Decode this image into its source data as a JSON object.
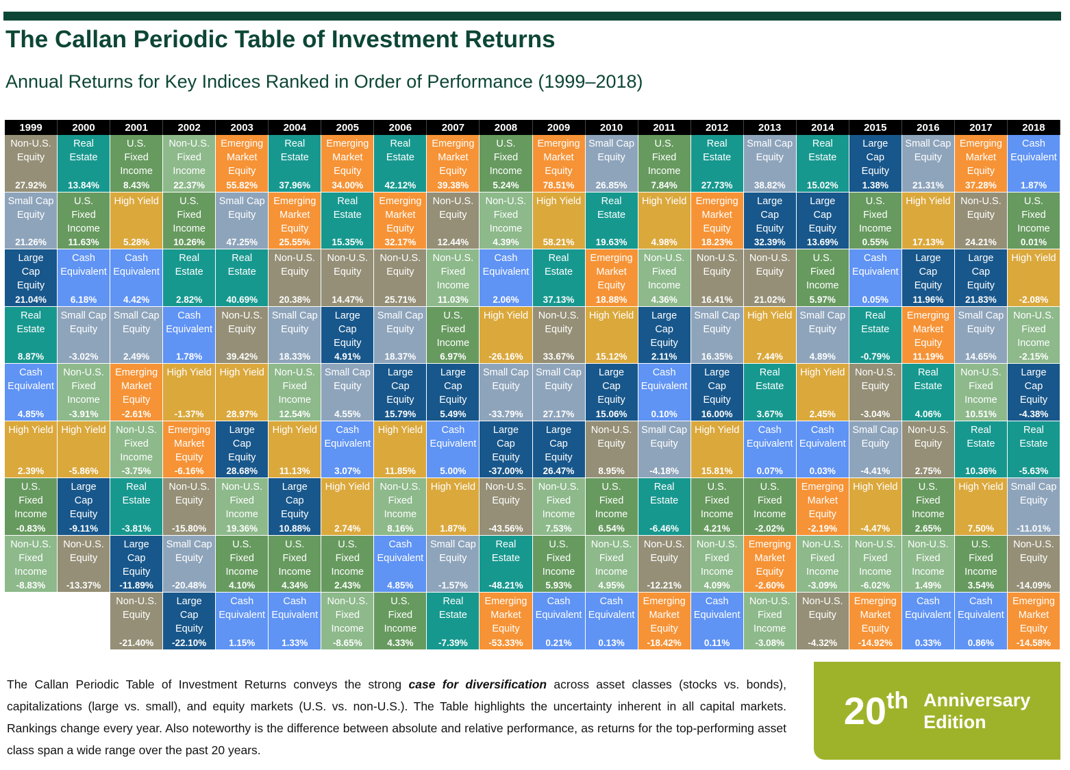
{
  "header": {
    "title": "The Callan Periodic Table of Investment Returns",
    "subtitle": "Annual Returns for Key Indices Ranked in Order of Performance (1999–2018)"
  },
  "colors": {
    "Non-U.S. Equity": "#948f76",
    "Real Estate": "#17988f",
    "U.S. Fixed Income": "#679a5f",
    "Non-U.S. Fixed Income": "#8db98b",
    "Emerging Market Equity": "#f69336",
    "Small Cap Equity": "#8ea4bb",
    "High Yield": "#dba83c",
    "Large Cap Equity": "#18578b",
    "Cash Equivalent": "#5f93f4"
  },
  "chart_data": {
    "type": "table",
    "years": [
      "1999",
      "2000",
      "2001",
      "2002",
      "2003",
      "2004",
      "2005",
      "2006",
      "2007",
      "2008",
      "2009",
      "2010",
      "2011",
      "2012",
      "2013",
      "2014",
      "2015",
      "2016",
      "2017",
      "2018"
    ],
    "columns": [
      [
        [
          "Non-U.S. Equity",
          "27.92%"
        ],
        [
          "Small Cap Equity",
          "21.26%"
        ],
        [
          "Large Cap Equity",
          "21.04%"
        ],
        [
          "Real Estate",
          "8.87%"
        ],
        [
          "Cash Equivalent",
          "4.85%"
        ],
        [
          "High Yield",
          "2.39%"
        ],
        [
          "U.S. Fixed Income",
          "-0.83%"
        ],
        [
          "Non-U.S. Fixed Income",
          "-8.83%"
        ]
      ],
      [
        [
          "Real Estate",
          "13.84%"
        ],
        [
          "U.S. Fixed Income",
          "11.63%"
        ],
        [
          "Cash Equivalent",
          "6.18%"
        ],
        [
          "Small Cap Equity",
          "-3.02%"
        ],
        [
          "Non-U.S. Fixed Income",
          "-3.91%"
        ],
        [
          "High Yield",
          "-5.86%"
        ],
        [
          "Large Cap Equity",
          "-9.11%"
        ],
        [
          "Non-U.S. Equity",
          "-13.37%"
        ]
      ],
      [
        [
          "U.S. Fixed Income",
          "8.43%"
        ],
        [
          "High Yield",
          "5.28%"
        ],
        [
          "Cash Equivalent",
          "4.42%"
        ],
        [
          "Small Cap Equity",
          "2.49%"
        ],
        [
          "Emerging Market Equity",
          "-2.61%"
        ],
        [
          "Non-U.S. Fixed Income",
          "-3.75%"
        ],
        [
          "Real Estate",
          "-3.81%"
        ],
        [
          "Large Cap Equity",
          "-11.89%"
        ],
        [
          "Non-U.S. Equity",
          "-21.40%"
        ]
      ],
      [
        [
          "Non-U.S. Fixed Income",
          "22.37%"
        ],
        [
          "U.S. Fixed Income",
          "10.26%"
        ],
        [
          "Real Estate",
          "2.82%"
        ],
        [
          "Cash Equivalent",
          "1.78%"
        ],
        [
          "High Yield",
          "-1.37%"
        ],
        [
          "Emerging Market Equity",
          "-6.16%"
        ],
        [
          "Non-U.S. Equity",
          "-15.80%"
        ],
        [
          "Small Cap Equity",
          "-20.48%"
        ],
        [
          "Large Cap Equity",
          "-22.10%"
        ]
      ],
      [
        [
          "Emerging Market Equity",
          "55.82%"
        ],
        [
          "Small Cap Equity",
          "47.25%"
        ],
        [
          "Real Estate",
          "40.69%"
        ],
        [
          "Non-U.S. Equity",
          "39.42%"
        ],
        [
          "High Yield",
          "28.97%"
        ],
        [
          "Large Cap Equity",
          "28.68%"
        ],
        [
          "Non-U.S. Fixed Income",
          "19.36%"
        ],
        [
          "U.S. Fixed Income",
          "4.10%"
        ],
        [
          "Cash Equivalent",
          "1.15%"
        ]
      ],
      [
        [
          "Real Estate",
          "37.96%"
        ],
        [
          "Emerging Market Equity",
          "25.55%"
        ],
        [
          "Non-U.S. Equity",
          "20.38%"
        ],
        [
          "Small Cap Equity",
          "18.33%"
        ],
        [
          "Non-U.S. Fixed Income",
          "12.54%"
        ],
        [
          "High Yield",
          "11.13%"
        ],
        [
          "Large Cap Equity",
          "10.88%"
        ],
        [
          "U.S. Fixed Income",
          "4.34%"
        ],
        [
          "Cash Equivalent",
          "1.33%"
        ]
      ],
      [
        [
          "Emerging Market Equity",
          "34.00%"
        ],
        [
          "Real Estate",
          "15.35%"
        ],
        [
          "Non-U.S. Equity",
          "14.47%"
        ],
        [
          "Large Cap Equity",
          "4.91%"
        ],
        [
          "Small Cap Equity",
          "4.55%"
        ],
        [
          "Cash Equivalent",
          "3.07%"
        ],
        [
          "High Yield",
          "2.74%"
        ],
        [
          "U.S. Fixed Income",
          "2.43%"
        ],
        [
          "Non-U.S. Fixed Income",
          "-8.65%"
        ]
      ],
      [
        [
          "Real Estate",
          "42.12%"
        ],
        [
          "Emerging Market Equity",
          "32.17%"
        ],
        [
          "Non-U.S. Equity",
          "25.71%"
        ],
        [
          "Small Cap Equity",
          "18.37%"
        ],
        [
          "Large Cap Equity",
          "15.79%"
        ],
        [
          "High Yield",
          "11.85%"
        ],
        [
          "Non-U.S. Fixed Income",
          "8.16%"
        ],
        [
          "Cash Equivalent",
          "4.85%"
        ],
        [
          "U.S. Fixed Income",
          "4.33%"
        ]
      ],
      [
        [
          "Emerging Market Equity",
          "39.38%"
        ],
        [
          "Non-U.S. Equity",
          "12.44%"
        ],
        [
          "Non-U.S. Fixed Income",
          "11.03%"
        ],
        [
          "U.S. Fixed Income",
          "6.97%"
        ],
        [
          "Large Cap Equity",
          "5.49%"
        ],
        [
          "Cash Equivalent",
          "5.00%"
        ],
        [
          "High Yield",
          "1.87%"
        ],
        [
          "Small Cap Equity",
          "-1.57%"
        ],
        [
          "Real Estate",
          "-7.39%"
        ]
      ],
      [
        [
          "U.S. Fixed Income",
          "5.24%"
        ],
        [
          "Non-U.S. Fixed Income",
          "4.39%"
        ],
        [
          "Cash Equivalent",
          "2.06%"
        ],
        [
          "High Yield",
          "-26.16%"
        ],
        [
          "Small Cap Equity",
          "-33.79%"
        ],
        [
          "Large Cap Equity",
          "-37.00%"
        ],
        [
          "Non-U.S. Equity",
          "-43.56%"
        ],
        [
          "Real Estate",
          "-48.21%"
        ],
        [
          "Emerging Market Equity",
          "-53.33%"
        ]
      ],
      [
        [
          "Emerging Market Equity",
          "78.51%"
        ],
        [
          "High Yield",
          "58.21%"
        ],
        [
          "Real Estate",
          "37.13%"
        ],
        [
          "Non-U.S. Equity",
          "33.67%"
        ],
        [
          "Small Cap Equity",
          "27.17%"
        ],
        [
          "Large Cap Equity",
          "26.47%"
        ],
        [
          "Non-U.S. Fixed Income",
          "7.53%"
        ],
        [
          "U.S. Fixed Income",
          "5.93%"
        ],
        [
          "Cash Equivalent",
          "0.21%"
        ]
      ],
      [
        [
          "Small Cap Equity",
          "26.85%"
        ],
        [
          "Real Estate",
          "19.63%"
        ],
        [
          "Emerging Market Equity",
          "18.88%"
        ],
        [
          "High Yield",
          "15.12%"
        ],
        [
          "Large Cap Equity",
          "15.06%"
        ],
        [
          "Non-U.S. Equity",
          "8.95%"
        ],
        [
          "U.S. Fixed Income",
          "6.54%"
        ],
        [
          "Non-U.S. Fixed Income",
          "4.95%"
        ],
        [
          "Cash Equivalent",
          "0.13%"
        ]
      ],
      [
        [
          "U.S. Fixed Income",
          "7.84%"
        ],
        [
          "High Yield",
          "4.98%"
        ],
        [
          "Non-U.S. Fixed Income",
          "4.36%"
        ],
        [
          "Large Cap Equity",
          "2.11%"
        ],
        [
          "Cash Equivalent",
          "0.10%"
        ],
        [
          "Small Cap Equity",
          "-4.18%"
        ],
        [
          "Real Estate",
          "-6.46%"
        ],
        [
          "Non-U.S. Equity",
          "-12.21%"
        ],
        [
          "Emerging Market Equity",
          "-18.42%"
        ]
      ],
      [
        [
          "Real Estate",
          "27.73%"
        ],
        [
          "Emerging Market Equity",
          "18.23%"
        ],
        [
          "Non-U.S. Equity",
          "16.41%"
        ],
        [
          "Small Cap Equity",
          "16.35%"
        ],
        [
          "Large Cap Equity",
          "16.00%"
        ],
        [
          "High Yield",
          "15.81%"
        ],
        [
          "U.S. Fixed Income",
          "4.21%"
        ],
        [
          "Non-U.S. Fixed Income",
          "4.09%"
        ],
        [
          "Cash Equivalent",
          "0.11%"
        ]
      ],
      [
        [
          "Small Cap Equity",
          "38.82%"
        ],
        [
          "Large Cap Equity",
          "32.39%"
        ],
        [
          "Non-U.S. Equity",
          "21.02%"
        ],
        [
          "High Yield",
          "7.44%"
        ],
        [
          "Real Estate",
          "3.67%"
        ],
        [
          "Cash Equivalent",
          "0.07%"
        ],
        [
          "U.S. Fixed Income",
          "-2.02%"
        ],
        [
          "Emerging Market Equity",
          "-2.60%"
        ],
        [
          "Non-U.S. Fixed Income",
          "-3.08%"
        ]
      ],
      [
        [
          "Real Estate",
          "15.02%"
        ],
        [
          "Large Cap Equity",
          "13.69%"
        ],
        [
          "U.S. Fixed Income",
          "5.97%"
        ],
        [
          "Small Cap Equity",
          "4.89%"
        ],
        [
          "High Yield",
          "2.45%"
        ],
        [
          "Cash Equivalent",
          "0.03%"
        ],
        [
          "Emerging Market Equity",
          "-2.19%"
        ],
        [
          "Non-U.S. Fixed Income",
          "-3.09%"
        ],
        [
          "Non-U.S. Equity",
          "-4.32%"
        ]
      ],
      [
        [
          "Large Cap Equity",
          "1.38%"
        ],
        [
          "U.S. Fixed Income",
          "0.55%"
        ],
        [
          "Cash Equivalent",
          "0.05%"
        ],
        [
          "Real Estate",
          "-0.79%"
        ],
        [
          "Non-U.S. Equity",
          "-3.04%"
        ],
        [
          "Small Cap Equity",
          "-4.41%"
        ],
        [
          "High Yield",
          "-4.47%"
        ],
        [
          "Non-U.S. Fixed Income",
          "-6.02%"
        ],
        [
          "Emerging Market Equity",
          "-14.92%"
        ]
      ],
      [
        [
          "Small Cap Equity",
          "21.31%"
        ],
        [
          "High Yield",
          "17.13%"
        ],
        [
          "Large Cap Equity",
          "11.96%"
        ],
        [
          "Emerging Market Equity",
          "11.19%"
        ],
        [
          "Real Estate",
          "4.06%"
        ],
        [
          "Non-U.S. Equity",
          "2.75%"
        ],
        [
          "U.S. Fixed Income",
          "2.65%"
        ],
        [
          "Non-U.S. Fixed Income",
          "1.49%"
        ],
        [
          "Cash Equivalent",
          "0.33%"
        ]
      ],
      [
        [
          "Emerging Market Equity",
          "37.28%"
        ],
        [
          "Non-U.S. Equity",
          "24.21%"
        ],
        [
          "Large Cap Equity",
          "21.83%"
        ],
        [
          "Small Cap Equity",
          "14.65%"
        ],
        [
          "Non-U.S. Fixed Income",
          "10.51%"
        ],
        [
          "Real Estate",
          "10.36%"
        ],
        [
          "High Yield",
          "7.50%"
        ],
        [
          "U.S. Fixed Income",
          "3.54%"
        ],
        [
          "Cash Equivalent",
          "0.86%"
        ]
      ],
      [
        [
          "Cash Equivalent",
          "1.87%"
        ],
        [
          "U.S. Fixed Income",
          "0.01%"
        ],
        [
          "High Yield",
          "-2.08%"
        ],
        [
          "Non-U.S. Fixed Income",
          "-2.15%"
        ],
        [
          "Large Cap Equity",
          "-4.38%"
        ],
        [
          "Real Estate",
          "-5.63%"
        ],
        [
          "Small Cap Equity",
          "-11.01%"
        ],
        [
          "Non-U.S. Equity",
          "-14.09%"
        ],
        [
          "Emerging Market Equity",
          "-14.58%"
        ]
      ]
    ]
  },
  "description": {
    "before": "The Callan Periodic Table of Investment Returns conveys the strong ",
    "emphasis": "case for diversification",
    "after": " across asset classes (stocks vs. bonds), capitalizations (large vs. small), and equity markets (U.S. vs. non-U.S.). The Table highlights the uncertainty inherent in all capital markets. Rankings change every year. Also noteworthy is the difference between absolute and relative performance, as returns for the top-performing asset class span a wide range over the past 20 years."
  },
  "badge": {
    "number": "20",
    "suffix": "th",
    "line1": "Anniversary",
    "line2": "Edition"
  }
}
